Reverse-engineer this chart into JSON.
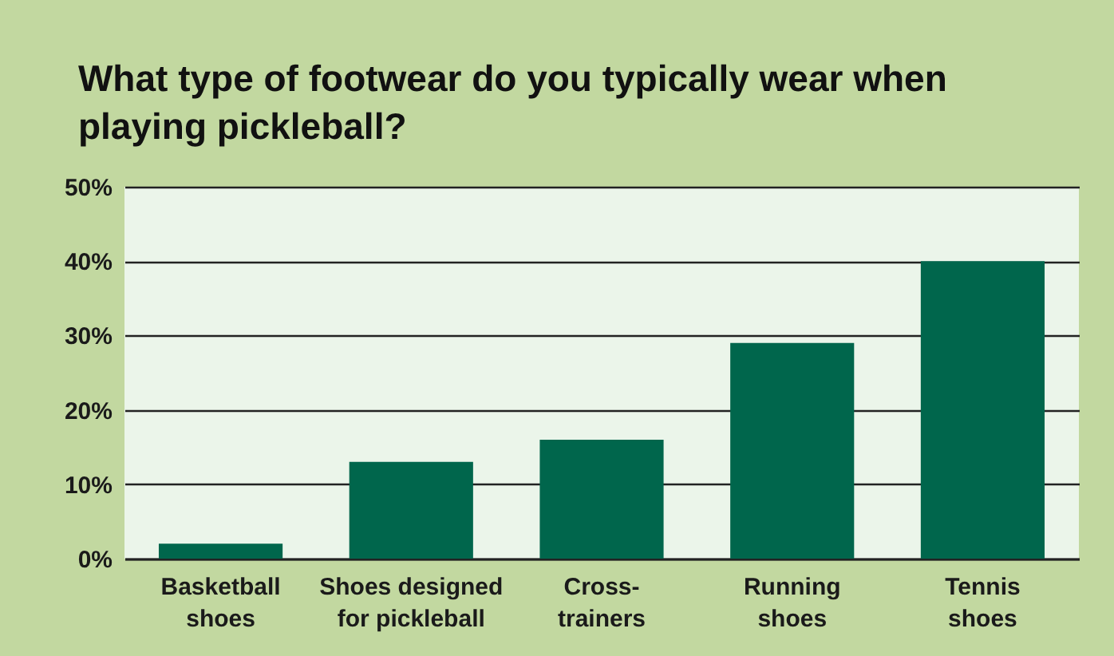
{
  "chart_data": {
    "type": "bar",
    "title": "What type of footwear do you typically wear when playing pickleball?",
    "categories": [
      "Basketball shoes",
      "Shoes designed for pickleball",
      "Cross-trainers",
      "Running shoes",
      "Tennis shoes"
    ],
    "values": [
      2,
      13,
      16,
      29,
      40
    ],
    "color": "#00664c",
    "ylim": [
      0,
      50
    ],
    "yticks": [
      {
        "value": 0,
        "label": "0%"
      },
      {
        "value": 10,
        "label": "10%"
      },
      {
        "value": 20,
        "label": "20%"
      },
      {
        "value": 30,
        "label": "30%"
      },
      {
        "value": 40,
        "label": "40%"
      },
      {
        "value": 50,
        "label": "50%"
      }
    ],
    "grid": "y"
  }
}
